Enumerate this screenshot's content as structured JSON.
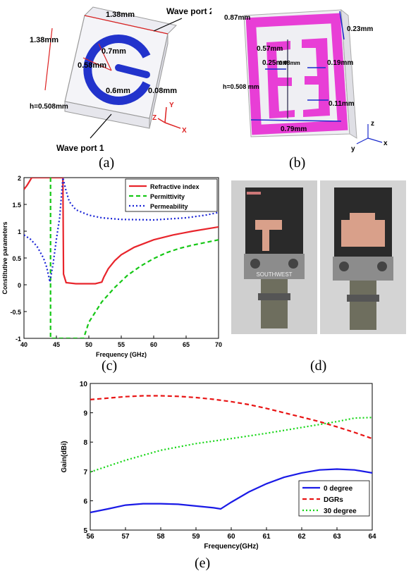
{
  "captions": {
    "a": "(a)",
    "b": "(b)",
    "c": "(c)",
    "d": "(d)",
    "e": "(e)"
  },
  "panel_a": {
    "dim_top": "1.38mm",
    "dim_left": "1.38mm",
    "r_outer": "0.7mm",
    "r_inner": "0.58mm",
    "gap": "0.6mm",
    "slot": "0.08mm",
    "height": "h=0.508mm",
    "port1": "Wave port 1",
    "port2": "Wave port 2",
    "axis_x": "X",
    "axis_y": "Y",
    "axis_z": "Z"
  },
  "panel_b": {
    "dim_top": "0.87mm",
    "dim_right": "0.23mm",
    "dim_057": "0.57mm",
    "dim_025": "0.25mm",
    "dim_008": "0.08mm",
    "dim_019": "0.19mm",
    "dim_011": "0.11mm",
    "dim_079": "0.79mm",
    "height": "h=0.508 mm",
    "axis_x": "x",
    "axis_y": "y",
    "axis_z": "z"
  },
  "panel_d": {
    "label_text": "SOUTHWEST"
  },
  "chart_data": [
    {
      "type": "line",
      "title": "",
      "xlabel": "Frequency (GHz)",
      "ylabel": "Constitutive parameters",
      "xlim": [
        40,
        70
      ],
      "ylim": [
        -1,
        2
      ],
      "xticks": [
        "40",
        "45",
        "50",
        "55",
        "60",
        "65",
        "70"
      ],
      "yticks": [
        "-1",
        "-0.5",
        "0",
        "0.5",
        "1",
        "1.5",
        "2"
      ],
      "legend": "top-right",
      "series": [
        {
          "name": "Refractive index",
          "color": "#e8252c",
          "dash": "solid",
          "x": [
            40,
            40.5,
            41.0,
            41.2,
            46.0,
            46.1,
            46.5,
            48,
            50,
            51,
            52,
            52.3,
            53,
            54,
            55,
            57,
            60,
            63,
            66,
            70
          ],
          "y": [
            1.78,
            1.86,
            1.96,
            2.0,
            2.0,
            0.2,
            0.04,
            0.02,
            0.02,
            0.02,
            0.05,
            0.14,
            0.3,
            0.45,
            0.56,
            0.7,
            0.84,
            0.93,
            1.0,
            1.08
          ]
        },
        {
          "name": "Permittivity",
          "color": "#16c716",
          "dash": "dashed",
          "x": [
            44.1,
            44.1,
            49.2,
            50,
            52,
            54,
            56,
            58,
            60,
            62,
            64,
            66,
            68,
            70
          ],
          "y": [
            2.0,
            -1.0,
            -1.0,
            -0.7,
            -0.32,
            -0.05,
            0.18,
            0.35,
            0.49,
            0.6,
            0.68,
            0.74,
            0.79,
            0.84
          ]
        },
        {
          "name": "Permeability",
          "color": "#1a24d6",
          "dash": "dotted",
          "x": [
            40,
            41,
            42,
            43,
            43.5,
            44.0,
            44.5,
            45,
            45.5,
            46,
            46.5,
            47,
            48,
            50,
            52,
            55,
            60,
            65,
            68,
            70
          ],
          "y": [
            0.93,
            0.85,
            0.72,
            0.5,
            0.33,
            0.05,
            0.4,
            0.85,
            1.25,
            2.0,
            1.75,
            1.55,
            1.4,
            1.3,
            1.25,
            1.22,
            1.21,
            1.25,
            1.3,
            1.35
          ]
        }
      ]
    },
    {
      "type": "line",
      "title": "",
      "xlabel": "Frequency(GHz)",
      "ylabel": "Gain(dBi)",
      "xlim": [
        56,
        64
      ],
      "ylim": [
        5,
        10
      ],
      "xticks": [
        "56",
        "57",
        "58",
        "59",
        "60",
        "61",
        "62",
        "63",
        "64"
      ],
      "yticks": [
        "5",
        "6",
        "7",
        "8",
        "9",
        "10"
      ],
      "legend": "bottom-right",
      "series": [
        {
          "name": "0 degree",
          "color": "#1a1ae6",
          "dash": "solid",
          "x": [
            56,
            56.5,
            57,
            57.5,
            58,
            58.5,
            59,
            59.5,
            59.7,
            60,
            60.5,
            61,
            61.5,
            62,
            62.5,
            63,
            63.5,
            64
          ],
          "y": [
            5.6,
            5.72,
            5.85,
            5.9,
            5.9,
            5.88,
            5.82,
            5.76,
            5.72,
            5.95,
            6.3,
            6.58,
            6.8,
            6.95,
            7.05,
            7.08,
            7.05,
            6.95
          ]
        },
        {
          "name": "DGRs",
          "color": "#e81414",
          "dash": "dashed",
          "x": [
            56,
            56.5,
            57,
            57.5,
            58,
            58.5,
            59,
            59.5,
            60,
            60.5,
            61,
            61.5,
            62,
            62.5,
            63,
            63.5,
            64
          ],
          "y": [
            9.45,
            9.5,
            9.55,
            9.58,
            9.58,
            9.56,
            9.52,
            9.46,
            9.38,
            9.28,
            9.15,
            9.0,
            8.85,
            8.7,
            8.52,
            8.33,
            8.12
          ]
        },
        {
          "name": "30 degree",
          "color": "#16d616",
          "dash": "dotted",
          "x": [
            56,
            57,
            58,
            59,
            60,
            61,
            62,
            63,
            63.5,
            64
          ],
          "y": [
            6.98,
            7.38,
            7.72,
            7.95,
            8.12,
            8.3,
            8.5,
            8.7,
            8.82,
            8.84
          ]
        }
      ]
    }
  ]
}
